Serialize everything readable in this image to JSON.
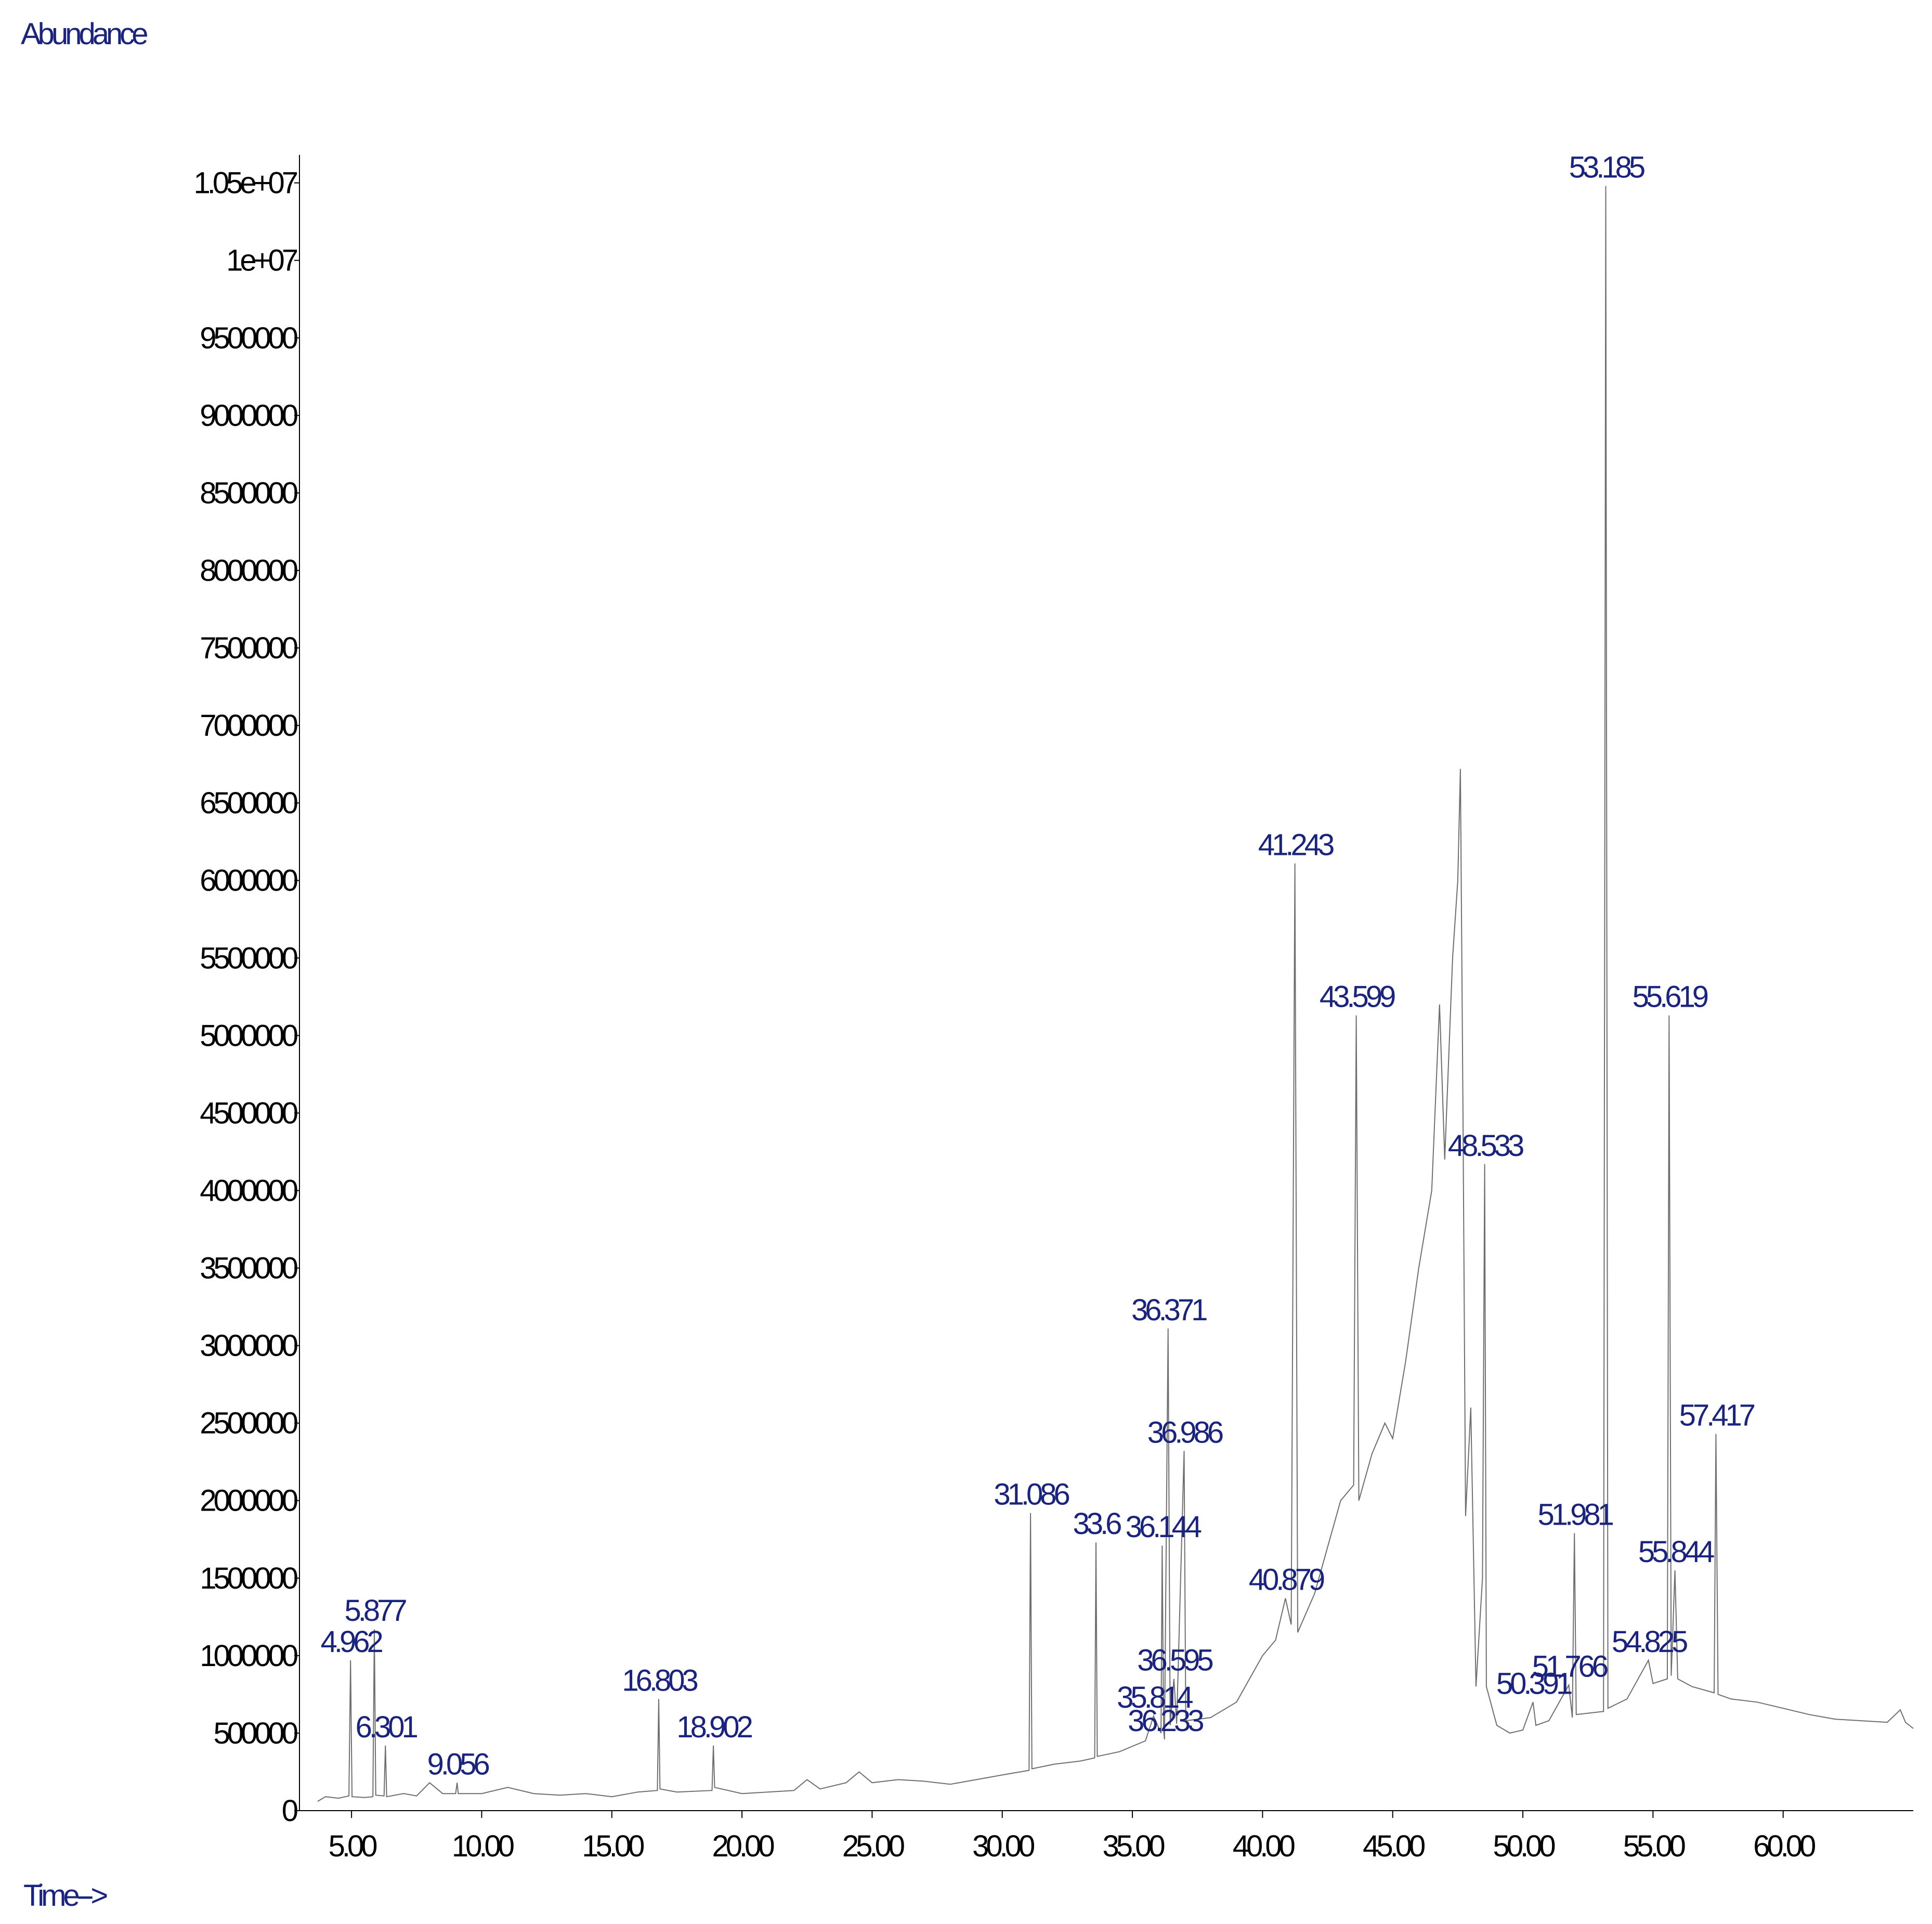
{
  "chart_data": {
    "type": "line",
    "y_label": "Abundance",
    "x_label": "Time-->",
    "xlim": [
      3,
      65
    ],
    "ylim": [
      0,
      10680000
    ],
    "xticks": [
      {
        "value": 5,
        "label": "5.00"
      },
      {
        "value": 10,
        "label": "10.00"
      },
      {
        "value": 15,
        "label": "15.00"
      },
      {
        "value": 20,
        "label": "20.00"
      },
      {
        "value": 25,
        "label": "25.00"
      },
      {
        "value": 30,
        "label": "30.00"
      },
      {
        "value": 35,
        "label": "35.00"
      },
      {
        "value": 40,
        "label": "40.00"
      },
      {
        "value": 45,
        "label": "45.00"
      },
      {
        "value": 50,
        "label": "50.00"
      },
      {
        "value": 55,
        "label": "55.00"
      },
      {
        "value": 60,
        "label": "60.00"
      }
    ],
    "yticks": [
      0,
      500000,
      1000000,
      1500000,
      2000000,
      2500000,
      3000000,
      3500000,
      4000000,
      4500000,
      5000000,
      5500000,
      6000000,
      6500000,
      7000000,
      7500000,
      8000000,
      8500000,
      9000000,
      9500000,
      {
        "value": 10000000,
        "label": "1e+07"
      },
      {
        "value": 10500000,
        "label": "1.05e+07"
      }
    ],
    "series": [
      {
        "color": "#6e6e6e",
        "x": [
          3.7,
          4.0,
          4.5,
          4.9,
          4.962,
          5.02,
          5.5,
          5.82,
          5.877,
          5.93,
          6.25,
          6.301,
          6.35,
          7.0,
          7.5,
          8.0,
          8.5,
          9.0,
          9.056,
          9.1,
          10,
          11,
          12,
          13,
          14,
          15,
          16,
          16.75,
          16.803,
          16.85,
          17.5,
          18.85,
          18.902,
          18.95,
          20,
          22,
          22.5,
          23,
          24,
          24.5,
          25,
          26,
          27,
          28,
          29,
          30,
          31.03,
          31.086,
          31.14,
          32,
          33,
          33.55,
          33.6,
          33.65,
          34.5,
          35.5,
          35.814,
          36.1,
          36.144,
          36.2,
          36.233,
          36.371,
          36.45,
          36.595,
          36.7,
          36.986,
          37.05,
          38,
          39,
          40,
          40.5,
          40.879,
          41.1,
          41.243,
          41.35,
          42,
          42.5,
          43,
          43.5,
          43.599,
          43.7,
          44.2,
          44.7,
          45,
          45.5,
          46,
          46.5,
          46.8,
          47,
          47.3,
          47.5,
          47.6,
          47.7,
          47.8,
          48.0,
          48.2,
          48.45,
          48.533,
          48.6,
          49,
          49.5,
          50,
          50.391,
          50.5,
          51,
          51.766,
          51.9,
          51.981,
          52.05,
          53.1,
          53.185,
          53.27,
          54,
          54.825,
          55,
          55.55,
          55.619,
          55.7,
          55.844,
          55.95,
          56.5,
          57.35,
          57.417,
          57.5,
          58,
          59,
          60,
          61,
          62,
          63,
          64,
          64.5,
          64.7,
          65
        ],
        "values": [
          60000,
          90000,
          80000,
          95000,
          970000,
          90000,
          85000,
          90000,
          1170000,
          100000,
          95000,
          420000,
          90000,
          110000,
          95000,
          180000,
          110000,
          110000,
          180000,
          110000,
          110000,
          150000,
          110000,
          100000,
          110000,
          90000,
          120000,
          130000,
          720000,
          140000,
          120000,
          130000,
          420000,
          150000,
          110000,
          130000,
          200000,
          140000,
          180000,
          250000,
          180000,
          200000,
          190000,
          170000,
          200000,
          230000,
          260000,
          1920000,
          270000,
          300000,
          320000,
          340000,
          1730000,
          350000,
          380000,
          450000,
          610000,
          500000,
          1710000,
          520000,
          460000,
          3110000,
          550000,
          850000,
          560000,
          2320000,
          580000,
          600000,
          700000,
          1000000,
          1100000,
          1370000,
          1200000,
          6110000,
          1150000,
          1400000,
          1700000,
          2000000,
          2100000,
          5130000,
          2000000,
          2300000,
          2500000,
          2400000,
          2900000,
          3500000,
          4000000,
          5200000,
          4200000,
          5500000,
          6000000,
          6720000,
          4500000,
          1900000,
          2600000,
          800000,
          1500000,
          4170000,
          800000,
          550000,
          500000,
          520000,
          700000,
          550000,
          580000,
          810000,
          600000,
          1790000,
          620000,
          640000,
          10480000,
          660000,
          720000,
          970000,
          820000,
          850000,
          5130000,
          870000,
          1550000,
          850000,
          800000,
          760000,
          2430000,
          750000,
          720000,
          700000,
          660000,
          620000,
          590000,
          580000,
          570000,
          650000,
          570000,
          530000
        ]
      }
    ],
    "annotations": [
      {
        "text": "4.962",
        "x": 4.962,
        "y": 970000
      },
      {
        "text": "5.877",
        "x": 5.877,
        "y": 1170000
      },
      {
        "text": "6.301",
        "x": 6.301,
        "y": 420000
      },
      {
        "text": "9.056",
        "x": 9.056,
        "y": 180000
      },
      {
        "text": "16.803",
        "x": 16.803,
        "y": 720000
      },
      {
        "text": "18.902",
        "x": 18.902,
        "y": 420000
      },
      {
        "text": "31.086",
        "x": 31.086,
        "y": 1920000
      },
      {
        "text": "33.6",
        "x": 33.6,
        "y": 1730000
      },
      {
        "text": "35.814",
        "x": 35.814,
        "y": 610000
      },
      {
        "text": "36.144",
        "x": 36.144,
        "y": 1710000
      },
      {
        "text": "36.233",
        "x": 36.233,
        "y": 460000
      },
      {
        "text": "36.371",
        "x": 36.371,
        "y": 3110000
      },
      {
        "text": "36.595",
        "x": 36.595,
        "y": 850000
      },
      {
        "text": "36.986",
        "x": 36.986,
        "y": 2320000
      },
      {
        "text": "40.879",
        "x": 40.879,
        "y": 1370000
      },
      {
        "text": "41.243",
        "x": 41.243,
        "y": 6110000
      },
      {
        "text": "43.599",
        "x": 43.599,
        "y": 5130000
      },
      {
        "text": "48.533",
        "x": 48.533,
        "y": 4170000
      },
      {
        "text": "50.391",
        "x": 50.391,
        "y": 700000
      },
      {
        "text": "51.766",
        "x": 51.766,
        "y": 810000
      },
      {
        "text": "51.981",
        "x": 51.981,
        "y": 1790000
      },
      {
        "text": "53.185",
        "x": 53.185,
        "y": 10480000
      },
      {
        "text": "54.825",
        "x": 54.825,
        "y": 970000
      },
      {
        "text": "55.619",
        "x": 55.619,
        "y": 5130000
      },
      {
        "text": "55.844",
        "x": 55.844,
        "y": 1550000
      },
      {
        "text": "57.417",
        "x": 57.417,
        "y": 2430000
      }
    ]
  }
}
